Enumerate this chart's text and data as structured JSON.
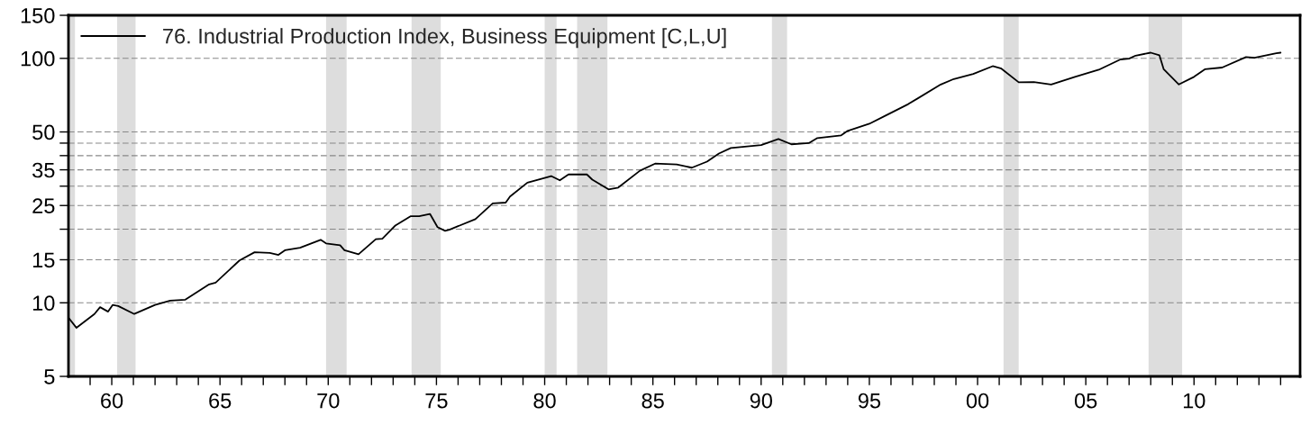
{
  "chart_data": {
    "type": "line",
    "series": [
      {
        "name": "76. Industrial Production Index, Business Equipment [C,L,U]",
        "color": "#000000",
        "x": [
          1958.0,
          1958.37,
          1959.2,
          1959.46,
          1959.83,
          1960.04,
          1960.3,
          1961.04,
          1962.0,
          1962.7,
          1963.4,
          1964.5,
          1964.8,
          1965.9,
          1966.6,
          1967.3,
          1967.7,
          1968.0,
          1968.7,
          1969.65,
          1969.9,
          1970.55,
          1970.75,
          1971.4,
          1972.2,
          1972.5,
          1973.1,
          1973.8,
          1974.2,
          1974.7,
          1975.05,
          1975.4,
          1975.6,
          1976.8,
          1977.6,
          1978.2,
          1978.4,
          1979.2,
          1980.3,
          1980.7,
          1981.1,
          1981.95,
          1982.2,
          1982.95,
          1983.4,
          1984.4,
          1985.1,
          1986.1,
          1986.8,
          1987.5,
          1988.05,
          1988.6,
          1990.0,
          1990.8,
          1991.4,
          1992.2,
          1992.6,
          1993.7,
          1994.0,
          1995.0,
          1995.75,
          1996.8,
          1998.3,
          1998.9,
          1999.8,
          2000.7,
          2001.1,
          2001.9,
          2002.6,
          2003.4,
          2004.5,
          2005.6,
          2006.6,
          2007.0,
          2007.3,
          2008.0,
          2008.4,
          2008.6,
          2009.3,
          2010.0,
          2010.5,
          2011.3,
          2012.4,
          2012.8,
          2013.8,
          2014.0
        ],
        "values": [
          8.7,
          7.9,
          9.0,
          9.6,
          9.2,
          9.8,
          9.7,
          9.0,
          9.8,
          10.2,
          10.3,
          11.9,
          12.1,
          14.9,
          16.1,
          16.0,
          15.7,
          16.4,
          16.8,
          18.1,
          17.5,
          17.2,
          16.4,
          15.8,
          18.2,
          18.3,
          20.7,
          22.6,
          22.6,
          23.1,
          20.4,
          19.7,
          19.9,
          22.0,
          25.5,
          25.7,
          27.2,
          31.0,
          33.0,
          31.7,
          33.5,
          33.5,
          31.9,
          29.1,
          29.6,
          34.7,
          37.1,
          36.8,
          35.7,
          37.8,
          40.8,
          43.0,
          44.2,
          46.8,
          44.5,
          45.0,
          47.2,
          48.4,
          50.5,
          54.0,
          58.3,
          65.0,
          78.2,
          82.3,
          86.4,
          92.9,
          90.8,
          79.8,
          80.0,
          78.2,
          84.0,
          89.8,
          99.0,
          99.7,
          102.6,
          105.5,
          103,
          90.2,
          78.2,
          84.0,
          90.2,
          91.7,
          101.2,
          100.5,
          105,
          105.5
        ]
      }
    ],
    "log": true,
    "grid": "y",
    "legend": "top left",
    "marker": "none",
    "line_style": "solid",
    "xlim": [
      1958.0,
      2014.9
    ],
    "xticks": [
      {
        "value": 1959,
        "label": null
      },
      {
        "value": 1960,
        "label": "60"
      },
      {
        "value": 1961,
        "label": null
      },
      {
        "value": 1962,
        "label": null
      },
      {
        "value": 1963,
        "label": null
      },
      {
        "value": 1964,
        "label": null
      },
      {
        "value": 1965,
        "label": "65"
      },
      {
        "value": 1966,
        "label": null
      },
      {
        "value": 1967,
        "label": null
      },
      {
        "value": 1968,
        "label": null
      },
      {
        "value": 1969,
        "label": null
      },
      {
        "value": 1970,
        "label": "70"
      },
      {
        "value": 1971,
        "label": null
      },
      {
        "value": 1972,
        "label": null
      },
      {
        "value": 1973,
        "label": null
      },
      {
        "value": 1974,
        "label": null
      },
      {
        "value": 1975,
        "label": "75"
      },
      {
        "value": 1976,
        "label": null
      },
      {
        "value": 1977,
        "label": null
      },
      {
        "value": 1978,
        "label": null
      },
      {
        "value": 1979,
        "label": null
      },
      {
        "value": 1980,
        "label": "80"
      },
      {
        "value": 1981,
        "label": null
      },
      {
        "value": 1982,
        "label": null
      },
      {
        "value": 1983,
        "label": null
      },
      {
        "value": 1984,
        "label": null
      },
      {
        "value": 1985,
        "label": "85"
      },
      {
        "value": 1986,
        "label": null
      },
      {
        "value": 1987,
        "label": null
      },
      {
        "value": 1988,
        "label": null
      },
      {
        "value": 1989,
        "label": null
      },
      {
        "value": 1990,
        "label": "90"
      },
      {
        "value": 1991,
        "label": null
      },
      {
        "value": 1992,
        "label": null
      },
      {
        "value": 1993,
        "label": null
      },
      {
        "value": 1994,
        "label": null
      },
      {
        "value": 1995,
        "label": "95"
      },
      {
        "value": 1996,
        "label": null
      },
      {
        "value": 1997,
        "label": null
      },
      {
        "value": 1998,
        "label": null
      },
      {
        "value": 1999,
        "label": null
      },
      {
        "value": 2000,
        "label": "00"
      },
      {
        "value": 2001,
        "label": null
      },
      {
        "value": 2002,
        "label": null
      },
      {
        "value": 2003,
        "label": null
      },
      {
        "value": 2004,
        "label": null
      },
      {
        "value": 2005,
        "label": "05"
      },
      {
        "value": 2006,
        "label": null
      },
      {
        "value": 2007,
        "label": null
      },
      {
        "value": 2008,
        "label": null
      },
      {
        "value": 2009,
        "label": null
      },
      {
        "value": 2010,
        "label": "10"
      },
      {
        "value": 2011,
        "label": null
      },
      {
        "value": 2012,
        "label": null
      },
      {
        "value": 2013,
        "label": null
      },
      {
        "value": 2014,
        "label": null
      }
    ],
    "ylim": [
      5,
      150
    ],
    "yticks": [
      5,
      10,
      15,
      {
        "value": 20,
        "label": null
      },
      25,
      {
        "value": 30,
        "label": null
      },
      35,
      {
        "value": 40,
        "label": null
      },
      {
        "value": 45,
        "label": null
      },
      50,
      100,
      150
    ],
    "bands": [
      {
        "axis": "x",
        "from": 1958.0,
        "to": 1958.3,
        "color": "#dddddd"
      },
      {
        "axis": "x",
        "from": 1960.25,
        "to": 1961.1,
        "color": "#dddddd"
      },
      {
        "axis": "x",
        "from": 1969.9,
        "to": 1970.85,
        "color": "#dddddd"
      },
      {
        "axis": "x",
        "from": 1973.85,
        "to": 1975.2,
        "color": "#dddddd"
      },
      {
        "axis": "x",
        "from": 1980.0,
        "to": 1980.55,
        "color": "#dddddd"
      },
      {
        "axis": "x",
        "from": 1981.5,
        "to": 1982.9,
        "color": "#dddddd"
      },
      {
        "axis": "x",
        "from": 1990.5,
        "to": 1991.2,
        "color": "#dddddd"
      },
      {
        "axis": "x",
        "from": 2001.2,
        "to": 2001.9,
        "color": "#dddddd"
      },
      {
        "axis": "x",
        "from": 2007.9,
        "to": 2009.45,
        "color": "#dddddd"
      }
    ]
  }
}
